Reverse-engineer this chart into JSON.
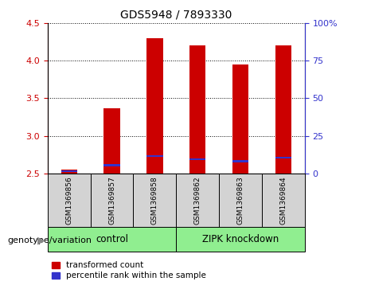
{
  "title": "GDS5948 / 7893330",
  "samples": [
    "GSM1369856",
    "GSM1369857",
    "GSM1369858",
    "GSM1369862",
    "GSM1369863",
    "GSM1369864"
  ],
  "group_labels": [
    "control",
    "ZIPK knockdown"
  ],
  "transformed_count": [
    2.55,
    3.37,
    4.3,
    4.2,
    3.95,
    4.2
  ],
  "baseline": 2.5,
  "ylim_left": [
    2.5,
    4.5
  ],
  "ylim_right": [
    0,
    100
  ],
  "yticks_left": [
    2.5,
    3.0,
    3.5,
    4.0,
    4.5
  ],
  "yticks_right": [
    0,
    25,
    50,
    75,
    100
  ],
  "ytick_labels_right": [
    "0",
    "25",
    "50",
    "75",
    "100%"
  ],
  "bar_color_red": "#cc0000",
  "bar_color_blue": "#3333cc",
  "bg_color_plot": "#ffffff",
  "bg_color_sample": "#d3d3d3",
  "bg_color_group": "#90ee90",
  "left_axis_color": "#cc0000",
  "right_axis_color": "#3333cc",
  "legend_label_red": "transformed count",
  "legend_label_blue": "percentile rank within the sample",
  "bottom_label": "genotype/variation",
  "percentile_positions": [
    2.515,
    2.598,
    2.718,
    2.678,
    2.648,
    2.698
  ]
}
